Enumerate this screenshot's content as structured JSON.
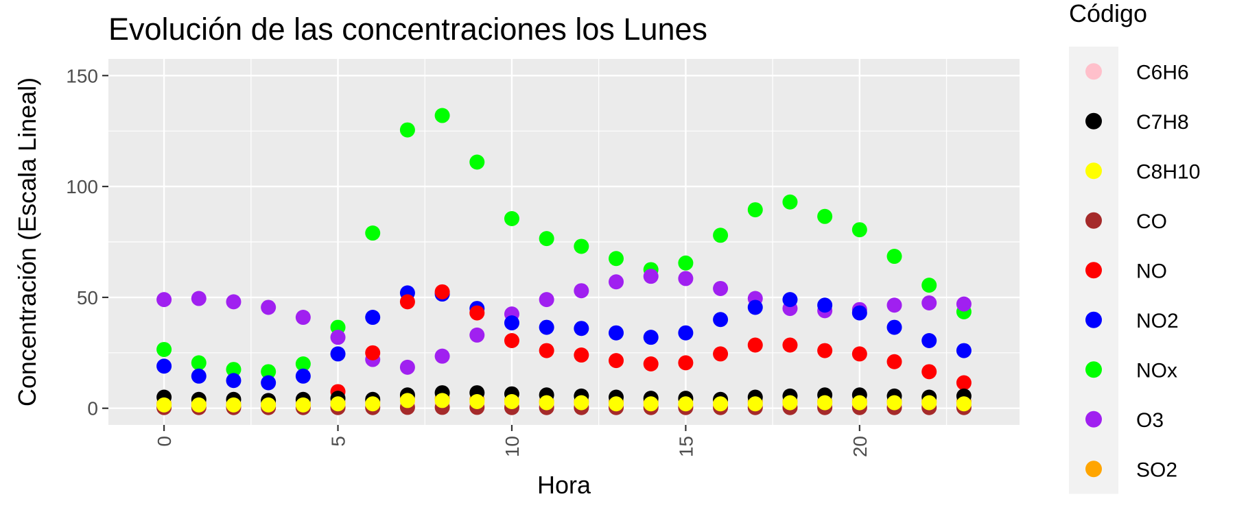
{
  "chart_data": {
    "type": "scatter",
    "title": "Evolución de las concentraciones los Lunes",
    "xlabel": "Hora",
    "ylabel": "Concentración (Escala Lineal)",
    "xlim": [
      -1.6,
      24.6
    ],
    "ylim": [
      -7.5,
      157.5
    ],
    "x_ticks": [
      0,
      5,
      10,
      15,
      20
    ],
    "y_ticks": [
      0,
      50,
      100,
      150
    ],
    "grid": true,
    "legend_position": "right",
    "legend_title": "Código",
    "x": [
      0,
      1,
      2,
      3,
      4,
      5,
      6,
      7,
      8,
      9,
      10,
      11,
      12,
      13,
      14,
      15,
      16,
      17,
      18,
      19,
      20,
      21,
      22,
      23
    ],
    "series": [
      {
        "name": "C6H6",
        "color": "#FFC0CB",
        "values": [
          0.8,
          0.7,
          0.7,
          0.6,
          0.7,
          1.0,
          1.2,
          1.8,
          2.0,
          1.6,
          1.4,
          1.3,
          1.2,
          1.1,
          1.1,
          1.1,
          1.2,
          1.4,
          1.5,
          1.6,
          1.6,
          1.5,
          1.4,
          1.2
        ]
      },
      {
        "name": "C7H8",
        "color": "#000000",
        "values": [
          5,
          4,
          4,
          3.5,
          4,
          4.5,
          4,
          6,
          7,
          7,
          6.5,
          6,
          5.5,
          5,
          4.5,
          4.5,
          4,
          5,
          5.5,
          6,
          6,
          5.5,
          5,
          5.5
        ]
      },
      {
        "name": "C8H10",
        "color": "#FFFF00",
        "values": [
          1.5,
          1.5,
          1.5,
          1.5,
          1.5,
          2,
          2,
          3.5,
          3.5,
          3,
          3,
          2.5,
          2.5,
          2,
          2,
          2,
          2,
          2,
          2.5,
          2.5,
          2.5,
          2.5,
          2.5,
          2
        ]
      },
      {
        "name": "CO",
        "color": "#A52A2A",
        "values": [
          0.3,
          0.3,
          0.3,
          0.3,
          0.3,
          0.3,
          0.3,
          0.4,
          0.4,
          0.4,
          0.3,
          0.3,
          0.3,
          0.3,
          0.3,
          0.3,
          0.3,
          0.3,
          0.3,
          0.3,
          0.3,
          0.3,
          0.3,
          0.3
        ]
      },
      {
        "name": "NO",
        "color": "#FF0000",
        "values": [
          null,
          null,
          null,
          null,
          null,
          7.5,
          25,
          48,
          52.5,
          43,
          30.5,
          26,
          24,
          21.5,
          20,
          20.5,
          24.5,
          28.5,
          28.5,
          26,
          24.5,
          21,
          16.5,
          11.5
        ]
      },
      {
        "name": "NO2",
        "color": "#0000FF",
        "values": [
          19,
          14.5,
          12.5,
          11.5,
          14.5,
          24.5,
          41,
          52,
          51.5,
          45,
          38.5,
          36.5,
          36,
          34,
          32,
          34,
          40,
          45.5,
          49,
          46.5,
          43,
          36.5,
          30.5,
          26
        ]
      },
      {
        "name": "NOx",
        "color": "#00FF00",
        "values": [
          26.5,
          20.5,
          17.5,
          16.5,
          20,
          36.5,
          79,
          125.5,
          132,
          111,
          85.5,
          76.5,
          73,
          67.5,
          62.5,
          65.5,
          78,
          89.5,
          93,
          86.5,
          80.5,
          68.5,
          55.5,
          43.5
        ]
      },
      {
        "name": "O3",
        "color": "#A020F0",
        "values": [
          49,
          49.5,
          48,
          45.5,
          41,
          32,
          22,
          18.5,
          23.5,
          33,
          42.5,
          49,
          53,
          57,
          59.5,
          58.5,
          54,
          49.5,
          45,
          44,
          44.5,
          46.5,
          47.5,
          47
        ]
      },
      {
        "name": "SO2",
        "color": "#FFA500",
        "values": [
          2,
          2,
          2,
          2,
          2,
          2.5,
          3,
          5,
          4.5,
          4,
          3.5,
          3,
          3,
          3,
          3,
          4,
          3.5,
          3,
          3,
          3,
          3,
          3,
          3,
          3
        ]
      }
    ],
    "draw_order": [
      "NOx",
      "O3",
      "NO2",
      "NO",
      "SO2",
      "C7H8",
      "C6H6",
      "CO",
      "C8H10"
    ],
    "colors": {
      "panel_background": "#EBEBEB",
      "grid_line": "#FFFFFF",
      "legend_key_background": "#F2F2F2",
      "axis_text": "#4D4D4D"
    }
  }
}
